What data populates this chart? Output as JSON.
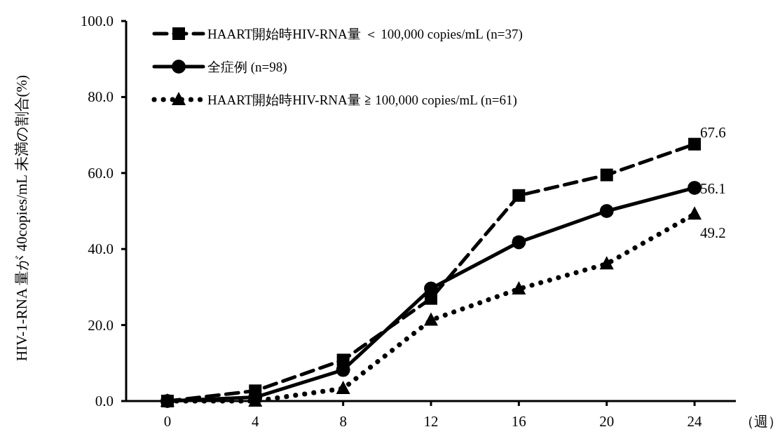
{
  "chart_data": {
    "type": "line",
    "xlabel": "（週）",
    "ylabel": "HIV-1-RNA 量が 40copies/mL 未満の割合(%)",
    "categories": [
      "0",
      "4",
      "8",
      "12",
      "16",
      "20",
      "24"
    ],
    "ylim": [
      0,
      100
    ],
    "yticks": [
      {
        "value": 0,
        "label": "0.0"
      },
      {
        "value": 20,
        "label": "20.0"
      },
      {
        "value": 40,
        "label": "40.0"
      },
      {
        "value": 60,
        "label": "60.0"
      },
      {
        "value": 80,
        "label": "80.0"
      },
      {
        "value": 100,
        "label": "100.0"
      }
    ],
    "legend": "top left",
    "grid": false,
    "series": [
      {
        "name": "HAART開始時HIV-RNA量 ＜ 100,000 copies/mL (n=37)",
        "color": "#000000",
        "marker": "square",
        "line_style": "dashed",
        "values": [
          0,
          2.7,
          10.8,
          27.0,
          54.1,
          59.5,
          67.6
        ],
        "value_labels": [
          null,
          null,
          null,
          null,
          null,
          null,
          "67.6"
        ]
      },
      {
        "name": "全症例 (n=98)",
        "color": "#000000",
        "marker": "circle",
        "line_style": "solid",
        "values": [
          0,
          1.0,
          8.2,
          29.6,
          41.8,
          50.0,
          56.1
        ],
        "value_labels": [
          null,
          null,
          null,
          null,
          null,
          null,
          "56.1"
        ]
      },
      {
        "name": "HAART開始時HIV-RNA量 ≧ 100,000 copies/mL (n=61)",
        "color": "#000000",
        "marker": "triangle",
        "line_style": "dotted",
        "values": [
          0,
          0,
          3.3,
          21.3,
          29.5,
          36.1,
          49.2
        ],
        "value_labels": [
          null,
          null,
          null,
          null,
          null,
          null,
          "49.2"
        ]
      }
    ]
  }
}
